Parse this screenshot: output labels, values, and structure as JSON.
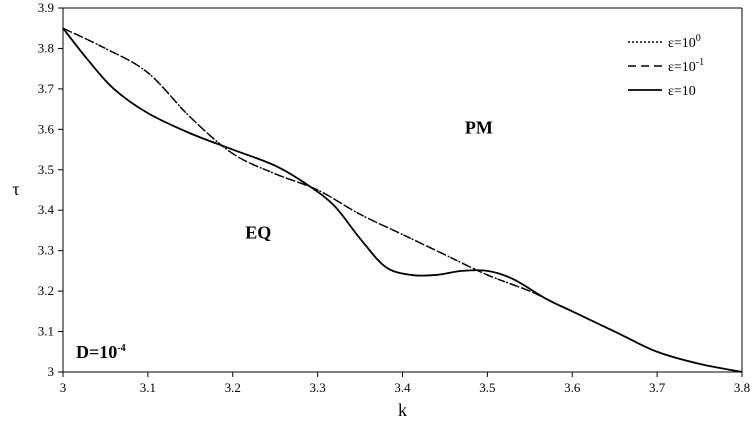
{
  "chart_data": {
    "type": "line",
    "xlabel": "k",
    "ylabel": "τ",
    "xlim": [
      3,
      3.8
    ],
    "ylim": [
      3,
      3.9
    ],
    "x_ticks": [
      "3",
      "3.1",
      "3.2",
      "3.3",
      "3.4",
      "3.5",
      "3.6",
      "3.7",
      "3.8"
    ],
    "y_ticks": [
      "3",
      "3.1",
      "3.2",
      "3.3",
      "3.4",
      "3.5",
      "3.6",
      "3.7",
      "3.8",
      "3.9"
    ],
    "grid": false,
    "legend": {
      "placement": "top-right"
    },
    "annotations": [
      {
        "text": "PM",
        "x": 3.49,
        "y": 3.59
      },
      {
        "text": "EQ",
        "x": 3.23,
        "y": 3.33
      }
    ],
    "parameter_label": {
      "base": "D=10",
      "sup": "-4"
    },
    "series": [
      {
        "name": "ε=10⁰",
        "label_base": "ε=10",
        "label_sup": "0",
        "style": "dotted",
        "x": [
          3.0,
          3.05,
          3.1,
          3.15,
          3.2,
          3.25,
          3.3,
          3.35,
          3.4,
          3.45,
          3.5,
          3.55,
          3.58
        ],
        "y": [
          3.85,
          3.8,
          3.74,
          3.63,
          3.54,
          3.49,
          3.45,
          3.39,
          3.34,
          3.29,
          3.24,
          3.2,
          3.17
        ]
      },
      {
        "name": "ε=10⁻¹",
        "label_base": "ε=10",
        "label_sup": "-1",
        "style": "dashed",
        "x": [
          3.0,
          3.05,
          3.1,
          3.15,
          3.2,
          3.25,
          3.3,
          3.35,
          3.4,
          3.45,
          3.5,
          3.55,
          3.58
        ],
        "y": [
          3.85,
          3.8,
          3.74,
          3.63,
          3.54,
          3.49,
          3.45,
          3.39,
          3.34,
          3.29,
          3.24,
          3.2,
          3.17
        ]
      },
      {
        "name": "ε=10",
        "label_base": "ε=10",
        "label_sup": "",
        "style": "solid",
        "x": [
          3.0,
          3.03,
          3.06,
          3.1,
          3.15,
          3.2,
          3.25,
          3.29,
          3.32,
          3.35,
          3.38,
          3.41,
          3.44,
          3.47,
          3.5,
          3.53,
          3.57,
          3.6,
          3.65,
          3.7,
          3.75,
          3.8
        ],
        "y": [
          3.85,
          3.77,
          3.7,
          3.64,
          3.59,
          3.55,
          3.51,
          3.46,
          3.41,
          3.33,
          3.26,
          3.24,
          3.24,
          3.25,
          3.25,
          3.23,
          3.18,
          3.15,
          3.1,
          3.05,
          3.02,
          3.0
        ]
      }
    ]
  }
}
